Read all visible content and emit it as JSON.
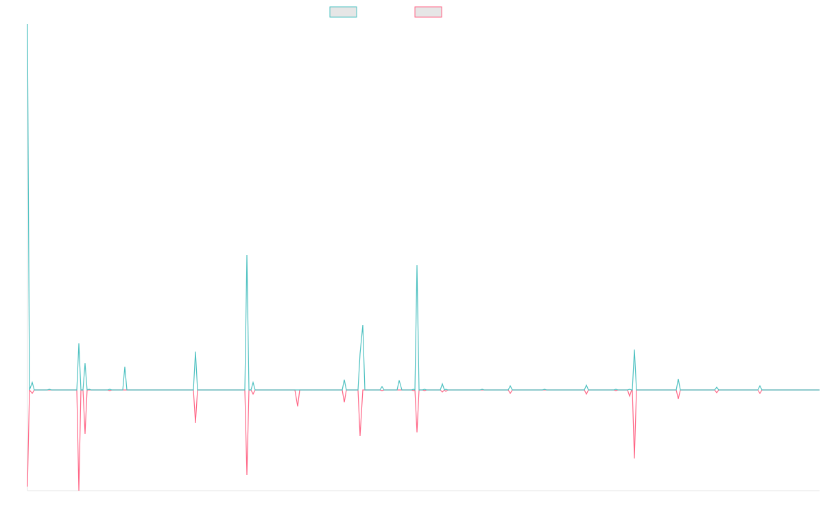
{
  "chart_data": {
    "type": "line",
    "x": [
      0,
      3,
      7,
      10,
      29,
      32,
      35,
      72,
      75,
      78,
      81,
      84,
      87,
      90,
      93,
      117,
      120,
      123,
      139,
      142,
      145,
      242,
      245,
      248,
      317,
      320,
      323,
      326,
      329,
      332,
      390,
      394,
      397,
      459,
      462,
      465,
      482,
      485,
      489,
      492,
      514,
      517,
      520,
      539,
      542,
      546,
      560,
      563,
      565,
      568,
      571,
      576,
      579,
      582,
      602,
      605,
      608,
      610,
      613,
      660,
      663,
      666,
      701,
      704,
      707,
      751,
      754,
      757,
      812,
      815,
      818,
      855,
      858,
      861,
      875,
      878,
      881,
      882,
      885,
      888,
      946,
      949,
      952,
      1002,
      1005,
      1008,
      1065,
      1068,
      1071,
      1155
    ],
    "series": [
      {
        "color": "#4bc0c0",
        "values": [
          534,
          0,
          11,
          0,
          0,
          1,
          0,
          0,
          68,
          0,
          0,
          39,
          0,
          1,
          0,
          0,
          1,
          0,
          0,
          34,
          0,
          0,
          56,
          0,
          0,
          197,
          0,
          0,
          11,
          0,
          0,
          0,
          0,
          0,
          15,
          0,
          0,
          53,
          95,
          0,
          0,
          5,
          0,
          0,
          14,
          0,
          0,
          1,
          0,
          182,
          0,
          0,
          1,
          0,
          0,
          9,
          0,
          1,
          0,
          0,
          1,
          0,
          0,
          6,
          0,
          0,
          1,
          0,
          0,
          7,
          0,
          0,
          1,
          0,
          0,
          1,
          0,
          0,
          59,
          0,
          0,
          16,
          0,
          0,
          4,
          0,
          0,
          6,
          0,
          0
        ]
      },
      {
        "color": "#ff6384",
        "values": [
          -141,
          0,
          -5,
          0,
          0,
          0,
          0,
          0,
          -147,
          0,
          0,
          -64,
          0,
          0,
          0,
          0,
          -1,
          0,
          0,
          0,
          0,
          0,
          -48,
          0,
          0,
          -124,
          0,
          0,
          -6,
          0,
          0,
          -24,
          0,
          0,
          -18,
          0,
          0,
          -67,
          0,
          0,
          0,
          -1,
          0,
          0,
          0,
          0,
          0,
          -1,
          0,
          -62,
          0,
          0,
          -1,
          0,
          0,
          -3,
          0,
          -2,
          0,
          0,
          0,
          0,
          0,
          -5,
          0,
          0,
          0,
          0,
          0,
          -6,
          0,
          0,
          -1,
          0,
          0,
          -9,
          0,
          0,
          -100,
          0,
          0,
          -13,
          0,
          0,
          -4,
          0,
          0,
          -5,
          0,
          0
        ]
      }
    ],
    "xlim": [
      0,
      1155
    ],
    "ylim": [
      -147,
      534
    ],
    "grid": false
  }
}
